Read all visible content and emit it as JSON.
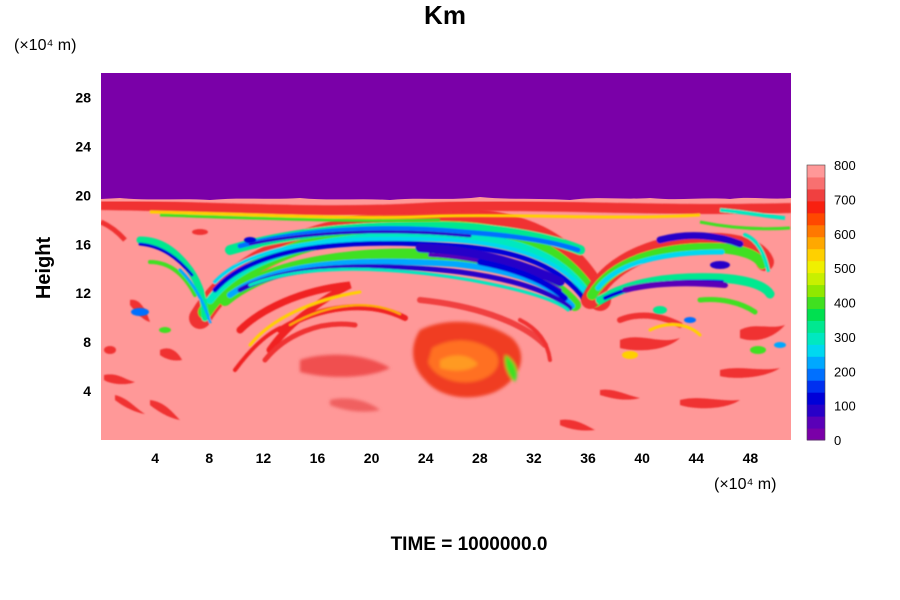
{
  "chart_data": {
    "type": "heatmap",
    "title": "Km",
    "ylabel": "Height",
    "xlabel": "",
    "x_unit": "(×10⁴ m)",
    "y_unit": "(×10⁴ m)",
    "x_ticks": [
      4,
      8,
      12,
      16,
      20,
      24,
      28,
      32,
      36,
      40,
      44,
      48
    ],
    "y_ticks": [
      4,
      8,
      12,
      16,
      20,
      24,
      28
    ],
    "xlim": [
      0,
      51
    ],
    "ylim": [
      0,
      30
    ],
    "colorbar": {
      "ticks": [
        0,
        100,
        200,
        300,
        400,
        500,
        600,
        700,
        800
      ],
      "range": [
        0,
        800
      ],
      "colors": [
        "#7a00a8",
        "#5a00b8",
        "#2800c8",
        "#0000d8",
        "#0030f0",
        "#0070ff",
        "#00a8ff",
        "#00d8f0",
        "#00e8c0",
        "#00e890",
        "#00e050",
        "#40e020",
        "#90e800",
        "#c8f000",
        "#f0f000",
        "#ffd000",
        "#ffa800",
        "#ff7800",
        "#ff4800",
        "#f82010",
        "#f04040",
        "#f87070",
        "#ff9898"
      ]
    },
    "field_description": {
      "above_20": 0,
      "background_below_20": 800
    }
  },
  "footer": {
    "time_label": "TIME = 1000000.0"
  }
}
